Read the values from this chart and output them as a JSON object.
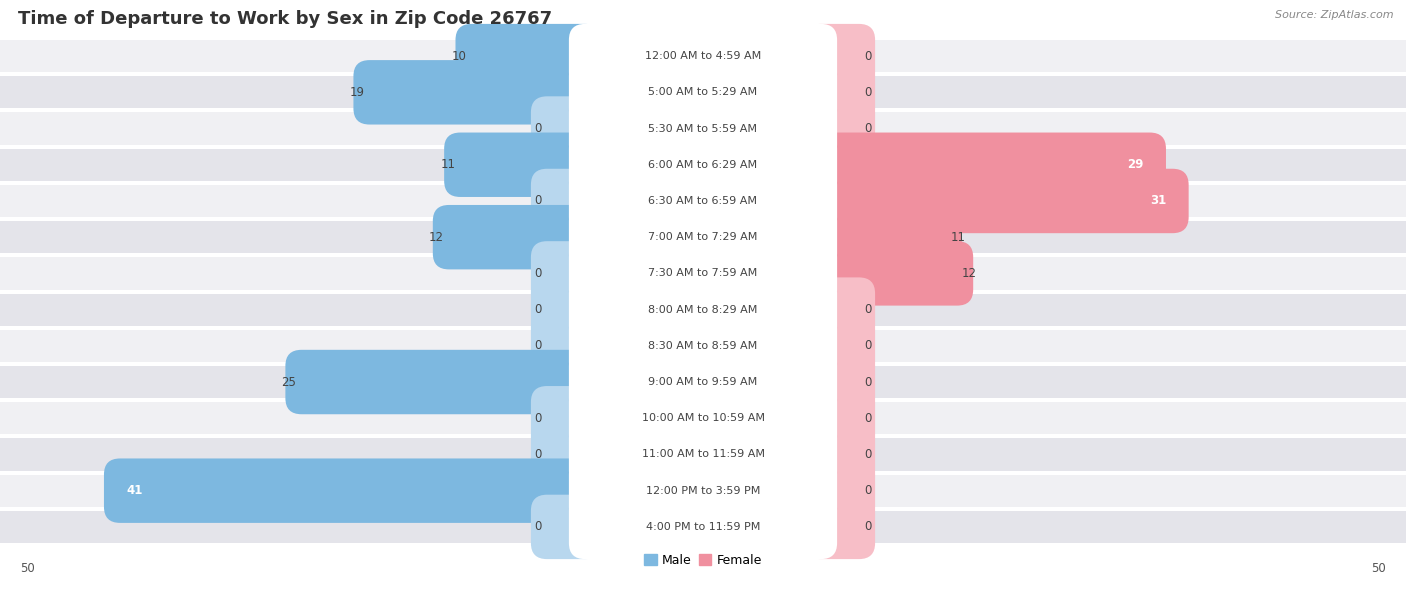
{
  "title": "Time of Departure to Work by Sex in Zip Code 26767",
  "source": "Source: ZipAtlas.com",
  "categories": [
    "12:00 AM to 4:59 AM",
    "5:00 AM to 5:29 AM",
    "5:30 AM to 5:59 AM",
    "6:00 AM to 6:29 AM",
    "6:30 AM to 6:59 AM",
    "7:00 AM to 7:29 AM",
    "7:30 AM to 7:59 AM",
    "8:00 AM to 8:29 AM",
    "8:30 AM to 8:59 AM",
    "9:00 AM to 9:59 AM",
    "10:00 AM to 10:59 AM",
    "11:00 AM to 11:59 AM",
    "12:00 PM to 3:59 PM",
    "4:00 PM to 11:59 PM"
  ],
  "male_values": [
    10,
    19,
    0,
    11,
    0,
    12,
    0,
    0,
    0,
    25,
    0,
    0,
    41,
    0
  ],
  "female_values": [
    0,
    0,
    0,
    29,
    31,
    11,
    12,
    0,
    0,
    0,
    0,
    0,
    0,
    0
  ],
  "male_color": "#7db8e0",
  "female_color": "#f0909f",
  "male_stub_color": "#b8d7ee",
  "female_stub_color": "#f7bec7",
  "axis_limit": 50,
  "row_bg_even": "#f0f0f3",
  "row_bg_odd": "#e4e4ea",
  "pill_bg": "#d8d8e0",
  "label_box_color": "#ffffff",
  "title_fontsize": 13,
  "cat_fontsize": 8.0,
  "value_fontsize": 8.5,
  "legend_fontsize": 9,
  "source_fontsize": 8
}
